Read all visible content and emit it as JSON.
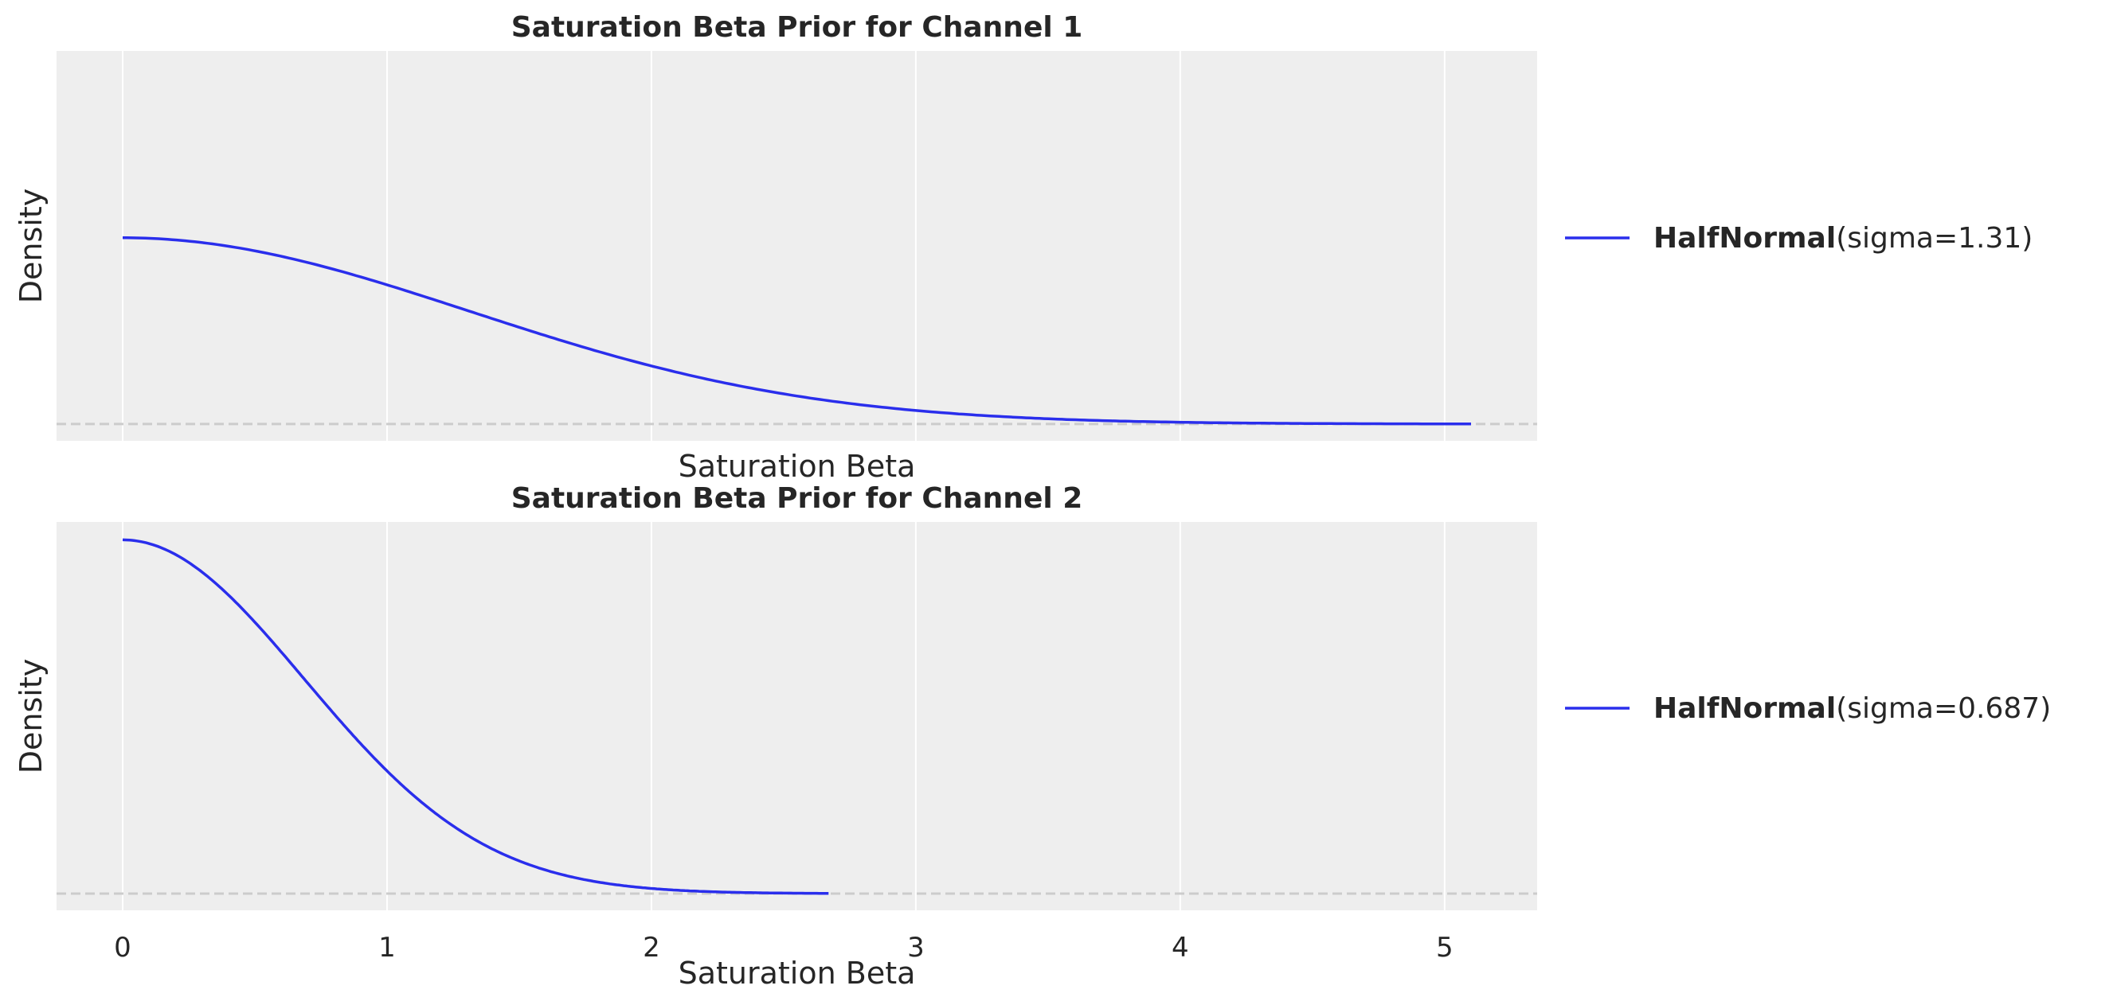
{
  "chart_data": [
    {
      "type": "line",
      "title": "Saturation Beta Prior for Channel 1",
      "xlabel": "Saturation Beta",
      "ylabel": "Density",
      "xlim": [
        -0.25,
        5.35
      ],
      "ylim": [
        -0.055,
        1.22
      ],
      "xticks": [
        0,
        1,
        2,
        3,
        4,
        5
      ],
      "xtick_labels_visible": false,
      "yticks_visible": false,
      "grid": true,
      "background": "#eeeeee",
      "legend_placement": "right",
      "reference_line": {
        "y": 0,
        "style": "dashed",
        "color": "#cccccc"
      },
      "series": [
        {
          "name_bold": "HalfNormal",
          "name_rest": "(sigma=1.31)",
          "distribution": "HalfNormal",
          "sigma": 1.31,
          "x_range": [
            0,
            5.1
          ],
          "color": "#2a2eec"
        }
      ]
    },
    {
      "type": "line",
      "title": "Saturation Beta Prior for Channel 2",
      "xlabel": "Saturation Beta",
      "ylabel": "Density",
      "xlim": [
        -0.25,
        5.35
      ],
      "ylim": [
        -0.055,
        1.22
      ],
      "xticks": [
        0,
        1,
        2,
        3,
        4,
        5
      ],
      "xtick_labels": [
        "0",
        "1",
        "2",
        "3",
        "4",
        "5"
      ],
      "yticks_visible": false,
      "grid": true,
      "background": "#eeeeee",
      "legend_placement": "right",
      "reference_line": {
        "y": 0,
        "style": "dashed",
        "color": "#cccccc"
      },
      "series": [
        {
          "name_bold": "HalfNormal",
          "name_rest": "(sigma=0.687)",
          "distribution": "HalfNormal",
          "sigma": 0.687,
          "x_range": [
            0,
            2.67
          ],
          "color": "#2a2eec"
        }
      ]
    }
  ]
}
